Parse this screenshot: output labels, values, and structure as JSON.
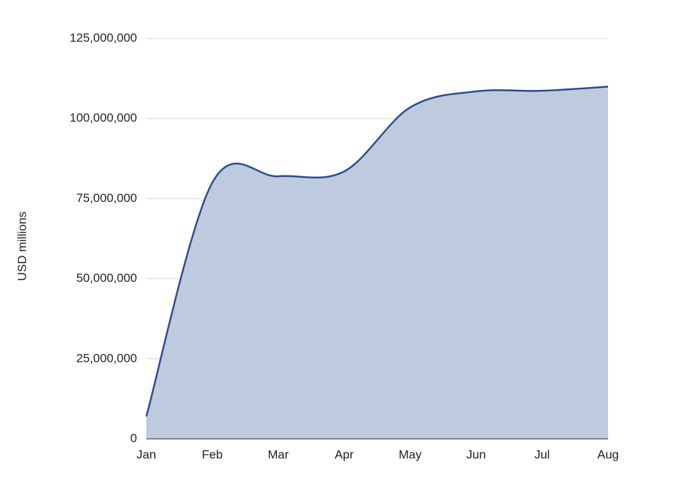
{
  "chart_data": {
    "type": "area",
    "y_axis_label": "USD millions",
    "categories": [
      "Jan",
      "Feb",
      "Mar",
      "Apr",
      "May",
      "Jun",
      "Jul",
      "Aug"
    ],
    "values": [
      7000000,
      80000000,
      82000000,
      83500000,
      103500000,
      108500000,
      108700000,
      110000000
    ],
    "color": "#2a4d8f",
    "fill_color": "#bac7db",
    "smooth": true,
    "ylim": [
      0,
      125000000
    ],
    "yticks": [
      0,
      {
        "value": 25000000,
        "label": "25,000,000"
      },
      {
        "value": 50000000,
        "label": "50,000,000"
      },
      {
        "value": 75000000,
        "label": "75,000,000"
      },
      {
        "value": 100000000,
        "label": "100,000,000"
      },
      {
        "value": 125000000,
        "label": "125,000,000"
      }
    ],
    "grid": true
  }
}
